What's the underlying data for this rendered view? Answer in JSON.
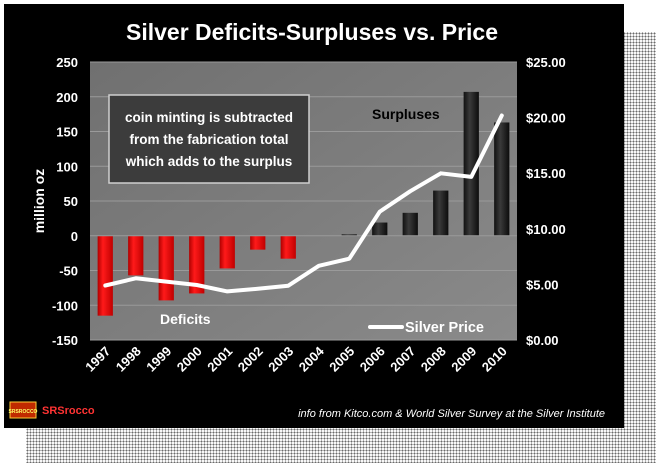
{
  "chart_data": {
    "type": "bar",
    "title": "Silver Deficits-Surpluses vs. Price",
    "ylabel": "million  oz",
    "xlabel": "",
    "categories": [
      "1997",
      "1998",
      "1999",
      "2000",
      "2001",
      "2002",
      "2003",
      "2004",
      "2005",
      "2006",
      "2007",
      "2008",
      "2009",
      "2010"
    ],
    "series": [
      {
        "values": [
          -115,
          -57,
          -93,
          -83,
          -47,
          -20,
          -33,
          0,
          2,
          19,
          33,
          65,
          207,
          163
        ]
      },
      {
        "name": "Silver Price",
        "type": "line",
        "axis": "right",
        "values": [
          4.9,
          5.55,
          5.25,
          4.95,
          4.37,
          4.6,
          4.88,
          6.67,
          7.31,
          11.55,
          13.38,
          14.99,
          14.67,
          20.19
        ]
      }
    ],
    "ylim": [
      -150,
      250
    ],
    "y_ticks": [
      "250",
      "200",
      "150",
      "100",
      "50",
      "0",
      "-50",
      "-100",
      "-150"
    ],
    "y2lim": [
      0,
      25
    ],
    "y2_ticks": [
      "$25.00",
      "$20.00",
      "$15.00",
      "$10.00",
      "$5.00",
      "$0.00"
    ],
    "grid": true,
    "legend_position": "bottom-right",
    "bar_colors": {
      "deficit": "#ff0000",
      "surplus": "#1a1a1a"
    },
    "annotations": {
      "note_lines": [
        "coin minting is subtracted",
        "from the fabrication total",
        "which adds to the surplus"
      ],
      "surpluses": "Surpluses",
      "deficits": "Deficits"
    }
  },
  "footer": {
    "logo_badge": "SRSROCCO",
    "logo_text": "SRSrocco",
    "source": "info from Kitco.com & World Silver Survey at the Silver Institute"
  }
}
